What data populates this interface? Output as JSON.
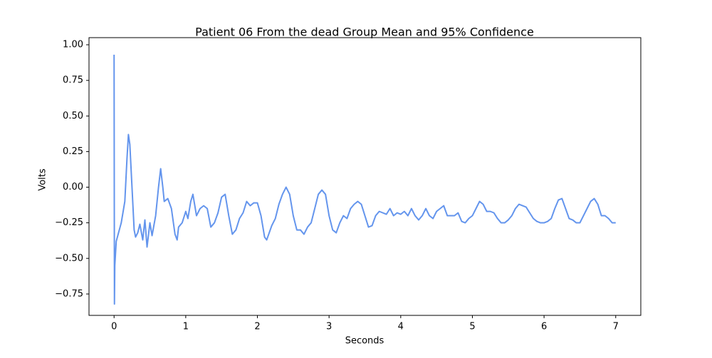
{
  "chart_data": {
    "type": "line",
    "title": "Patient 06 From the dead Group Mean and 95% Confidence",
    "x_label": "Seconds",
    "y_label": "Volts",
    "x": [
      0,
      0.005,
      0.01,
      0.03,
      0.1,
      0.15,
      0.18,
      0.2,
      0.22,
      0.25,
      0.28,
      0.3,
      0.33,
      0.36,
      0.4,
      0.43,
      0.46,
      0.5,
      0.53,
      0.58,
      0.62,
      0.65,
      0.68,
      0.7,
      0.75,
      0.8,
      0.85,
      0.88,
      0.9,
      0.95,
      1.0,
      1.03,
      1.07,
      1.1,
      1.15,
      1.2,
      1.25,
      1.3,
      1.35,
      1.4,
      1.45,
      1.5,
      1.55,
      1.6,
      1.65,
      1.7,
      1.75,
      1.8,
      1.85,
      1.9,
      1.95,
      2.0,
      2.05,
      2.1,
      2.13,
      2.2,
      2.25,
      2.3,
      2.35,
      2.4,
      2.45,
      2.5,
      2.55,
      2.6,
      2.65,
      2.7,
      2.75,
      2.8,
      2.85,
      2.9,
      2.95,
      3.0,
      3.05,
      3.1,
      3.15,
      3.2,
      3.25,
      3.3,
      3.35,
      3.4,
      3.45,
      3.5,
      3.55,
      3.6,
      3.65,
      3.7,
      3.75,
      3.8,
      3.85,
      3.9,
      3.95,
      4.0,
      4.05,
      4.1,
      4.15,
      4.2,
      4.25,
      4.3,
      4.35,
      4.4,
      4.45,
      4.5,
      4.55,
      4.6,
      4.65,
      4.7,
      4.75,
      4.8,
      4.85,
      4.9,
      4.95,
      5.0,
      5.05,
      5.1,
      5.15,
      5.2,
      5.25,
      5.3,
      5.35,
      5.4,
      5.45,
      5.5,
      5.55,
      5.6,
      5.65,
      5.7,
      5.75,
      5.8,
      5.85,
      5.9,
      5.95,
      6.0,
      6.05,
      6.1,
      6.15,
      6.2,
      6.25,
      6.3,
      6.35,
      6.4,
      6.45,
      6.5,
      6.55,
      6.6,
      6.65,
      6.7,
      6.75,
      6.8,
      6.85,
      6.9,
      6.95,
      7.0
    ],
    "series": [
      {
        "color": "#6495ed",
        "values": [
          0.93,
          -0.82,
          -0.55,
          -0.38,
          -0.25,
          -0.1,
          0.2,
          0.37,
          0.3,
          0.0,
          -0.3,
          -0.35,
          -0.32,
          -0.26,
          -0.37,
          -0.23,
          -0.42,
          -0.25,
          -0.34,
          -0.2,
          0.0,
          0.13,
          0.0,
          -0.1,
          -0.08,
          -0.15,
          -0.33,
          -0.37,
          -0.28,
          -0.25,
          -0.17,
          -0.22,
          -0.1,
          -0.05,
          -0.2,
          -0.15,
          -0.13,
          -0.15,
          -0.28,
          -0.25,
          -0.18,
          -0.07,
          -0.05,
          -0.2,
          -0.33,
          -0.3,
          -0.22,
          -0.18,
          -0.1,
          -0.13,
          -0.11,
          -0.11,
          -0.2,
          -0.35,
          -0.37,
          -0.27,
          -0.22,
          -0.12,
          -0.05,
          0.0,
          -0.05,
          -0.2,
          -0.3,
          -0.3,
          -0.33,
          -0.28,
          -0.25,
          -0.15,
          -0.05,
          -0.02,
          -0.05,
          -0.2,
          -0.3,
          -0.32,
          -0.25,
          -0.2,
          -0.22,
          -0.15,
          -0.12,
          -0.1,
          -0.12,
          -0.2,
          -0.28,
          -0.27,
          -0.2,
          -0.17,
          -0.18,
          -0.19,
          -0.15,
          -0.2,
          -0.18,
          -0.19,
          -0.17,
          -0.2,
          -0.15,
          -0.2,
          -0.23,
          -0.2,
          -0.15,
          -0.2,
          -0.22,
          -0.17,
          -0.15,
          -0.13,
          -0.2,
          -0.2,
          -0.2,
          -0.18,
          -0.24,
          -0.25,
          -0.22,
          -0.2,
          -0.15,
          -0.1,
          -0.12,
          -0.17,
          -0.17,
          -0.18,
          -0.22,
          -0.25,
          -0.25,
          -0.23,
          -0.2,
          -0.15,
          -0.12,
          -0.13,
          -0.14,
          -0.18,
          -0.22,
          -0.24,
          -0.25,
          -0.25,
          -0.24,
          -0.22,
          -0.15,
          -0.09,
          -0.08,
          -0.15,
          -0.22,
          -0.23,
          -0.25,
          -0.25,
          -0.2,
          -0.15,
          -0.1,
          -0.08,
          -0.12,
          -0.2,
          -0.2,
          -0.22,
          -0.25,
          -0.25
        ]
      }
    ],
    "xlim": [
      -0.35,
      7.35
    ],
    "ylim": [
      -0.9,
      1.05
    ],
    "xticks": [
      0,
      1,
      2,
      3,
      4,
      5,
      6,
      7
    ],
    "yticks": [
      {
        "value": -0.75,
        "label": "−0.75"
      },
      {
        "value": -0.5,
        "label": "−0.50"
      },
      {
        "value": -0.25,
        "label": "−0.25"
      },
      {
        "value": 0,
        "label": "0.00"
      },
      {
        "value": 0.25,
        "label": "0.25"
      },
      {
        "value": 0.5,
        "label": "0.50"
      },
      {
        "value": 0.75,
        "label": "0.75"
      },
      {
        "value": 1,
        "label": "1.00"
      }
    ]
  }
}
